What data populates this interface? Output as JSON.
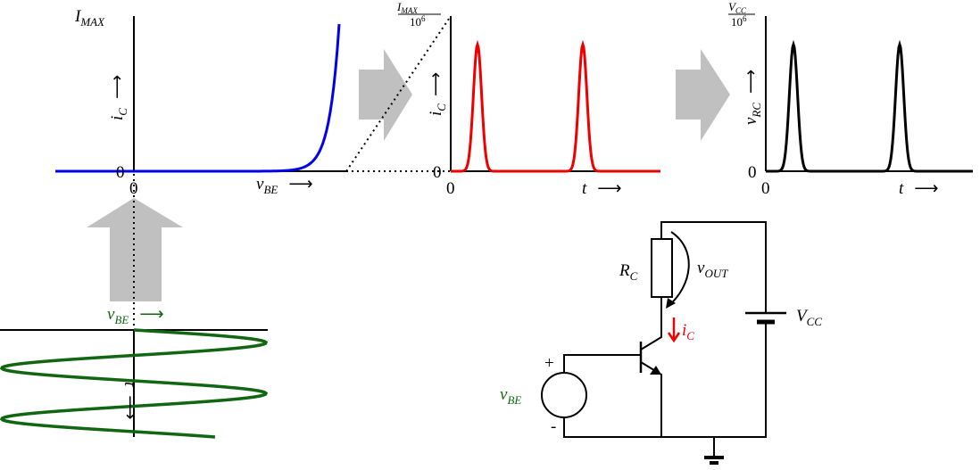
{
  "plots": [
    {
      "y_max": {
        "base": "I",
        "sub": "MAX"
      },
      "y_label": {
        "base": "i",
        "sub": "C",
        "arrow": "⟶"
      },
      "origin_y": "0",
      "origin_x": "0",
      "x_label": {
        "base": "v",
        "sub": "BE",
        "arrow": "⟶"
      }
    },
    {
      "y_max": {
        "num_base": "I",
        "num_sub": "MAX",
        "den_base": "10",
        "den_sup": "6"
      },
      "y_label": {
        "base": "i",
        "sub": "C",
        "arrow": "⟶"
      },
      "origin_y": "0",
      "origin_x": "0",
      "x_label": {
        "base": "t",
        "arrow": "⟶"
      }
    },
    {
      "y_max": {
        "num_base": "V",
        "num_sub": "CC",
        "den_base": "10",
        "den_sup": "6"
      },
      "y_label": {
        "base": "v",
        "sub": "RC",
        "arrow": "⟶"
      },
      "origin_y": "0",
      "origin_x": "0",
      "x_label": {
        "base": "t",
        "arrow": "⟶"
      }
    }
  ],
  "input_plot": {
    "x_label": {
      "base": "v",
      "sub": "BE",
      "arrow": "⟶"
    },
    "y_label": {
      "base": "t",
      "arrow": "⟶"
    }
  },
  "circuit": {
    "resistor": {
      "base": "R",
      "sub": "C"
    },
    "output": {
      "base": "v",
      "sub": "OUT"
    },
    "supply": {
      "base": "V",
      "sub": "CC"
    },
    "current": {
      "base": "i",
      "sub": "C"
    },
    "source": {
      "base": "v",
      "sub": "BE"
    },
    "plus": "+",
    "minus": "-"
  }
}
